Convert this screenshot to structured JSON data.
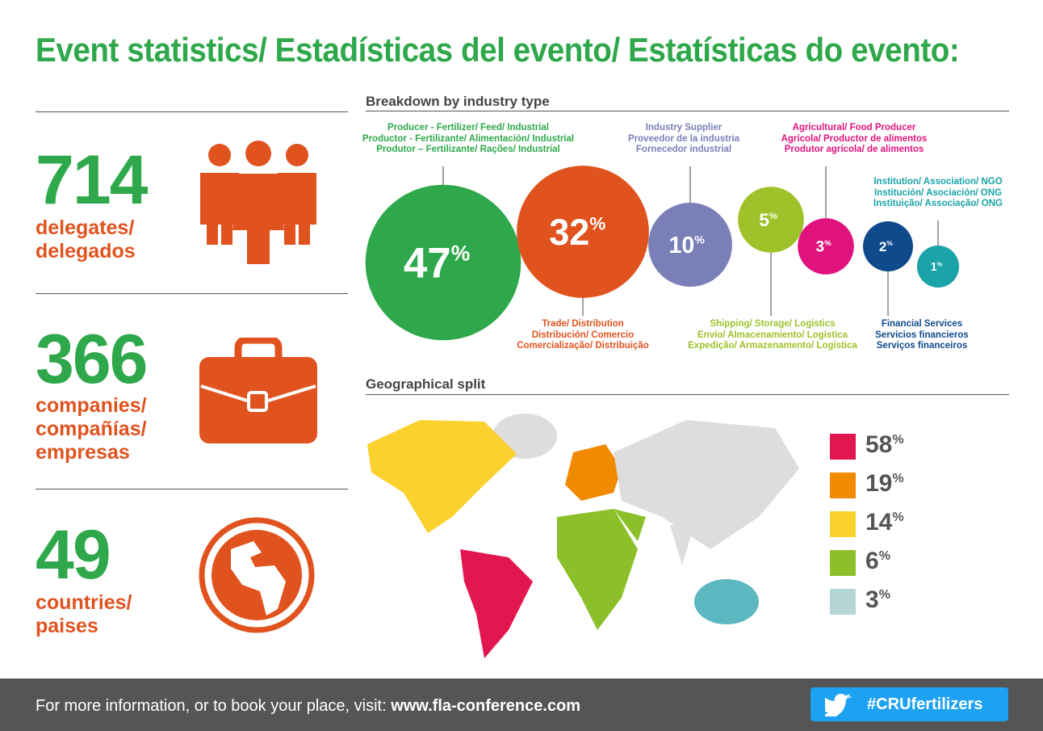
{
  "header": {
    "title": "Event statistics/ Estadísticas del evento/ Estatísticas do evento:"
  },
  "stats": [
    {
      "value": 714,
      "label": "delegates/\ndelegados"
    },
    {
      "value": 366,
      "label": "companies/\ncompañías/\nempresas"
    },
    {
      "value": 49,
      "label": "countries/\npaises"
    }
  ],
  "industry": {
    "title": "Breakdown by industry type",
    "segments": [
      {
        "label": "Producer - Fertilizer/ Feed/ Industrial\nProductor - Fertilizante/ Alimentación/ Industrial\nProdutor – Fertilizante/ Rações/ Industrial",
        "value": 47,
        "unit": "%",
        "color": "#2ea84a"
      },
      {
        "label": "Trade/ Distribution\nDistribución/ Comercio\nComercialização/ Distribuição",
        "value": 32,
        "unit": "%",
        "color": "#e0531f"
      },
      {
        "label": "Industry Supplier\nProveedor de la industria\nFornecedor industrial",
        "value": 10,
        "unit": "%",
        "color": "#7a7fb8"
      },
      {
        "label": "Shipping/ Storage/ Logistics\nEnvío/ Almacenamiento/ Logística\nExpedição/ Armazenamento/ Logística",
        "value": 5,
        "unit": "%",
        "color": "#9fc22b"
      },
      {
        "label": "Agricultural/ Food Producer\nAgrícola/ Productor de alimentos\nProdutor agrícola/ de alimentos",
        "value": 3,
        "unit": "%",
        "color": "#e0127d"
      },
      {
        "label": "Financial Services\nServicios financieros\nServiços financeiros",
        "value": 2,
        "unit": "%",
        "color": "#0f4a8c"
      },
      {
        "label": "Institution/ Association/ NGO\nInstitución/ Asociación/ ONG\nInstituição/ Associação/ ONG",
        "value": 1,
        "unit": "%",
        "color": "#1aa3a8"
      }
    ]
  },
  "geography": {
    "title": "Geographical split",
    "legend": [
      {
        "value": 58,
        "unit": "%",
        "color": "#e3174f"
      },
      {
        "value": 19,
        "unit": "%",
        "color": "#f08a00"
      },
      {
        "value": 14,
        "unit": "%",
        "color": "#fbd12e"
      },
      {
        "value": 6,
        "unit": "%",
        "color": "#8cc02a"
      },
      {
        "value": 3,
        "unit": "%",
        "color": "#b4d6d6"
      }
    ]
  },
  "footer": {
    "text": "For more information, or to book your place, visit:",
    "link": "www.fla-conference.com",
    "hashtag": "#CRUfertilizers"
  }
}
